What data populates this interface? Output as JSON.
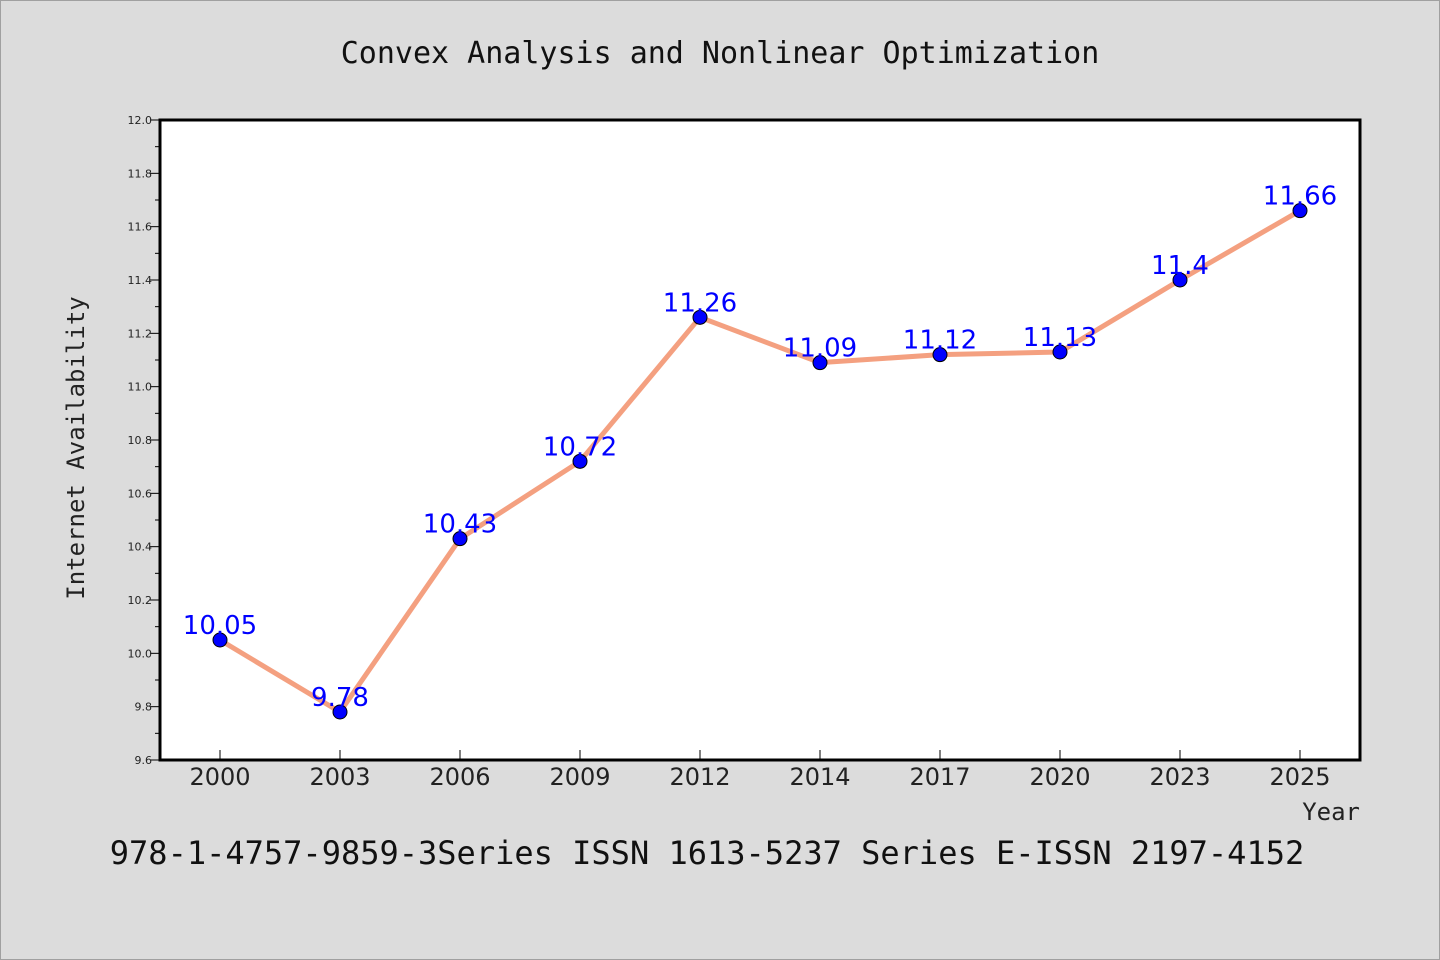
{
  "chart_data": {
    "type": "line",
    "title": "Convex Analysis and Nonlinear Optimization",
    "xlabel": "Year",
    "ylabel": "Internet Availability",
    "categories": [
      "2000",
      "2003",
      "2006",
      "2009",
      "2012",
      "2014",
      "2017",
      "2020",
      "2023",
      "2025"
    ],
    "series": [
      {
        "values": [
          10.05,
          9.78,
          10.43,
          10.72,
          11.26,
          11.09,
          11.12,
          11.13,
          11.4,
          11.66
        ],
        "data_labels": [
          "10.05",
          "9.78",
          "10.43",
          "10.72",
          "11.26",
          "11.09",
          "11.12",
          "11.13",
          "11.4",
          "11.66"
        ],
        "line_color": "#f4a080",
        "marker_color": "#0000ff"
      }
    ],
    "ylim": [
      9.6,
      12.0
    ],
    "yticks": [
      "9.6",
      "9.8",
      "10.0",
      "10.2",
      "10.4",
      "10.6",
      "10.8",
      "11.0",
      "11.2",
      "11.4",
      "11.6",
      "11.8",
      "12.0"
    ],
    "grid": false,
    "legend": "none",
    "data_label_color": "#0000ff"
  },
  "footer": "978-1-4757-9859-3Series ISSN 1613-5237 Series E-ISSN 2197-4152"
}
